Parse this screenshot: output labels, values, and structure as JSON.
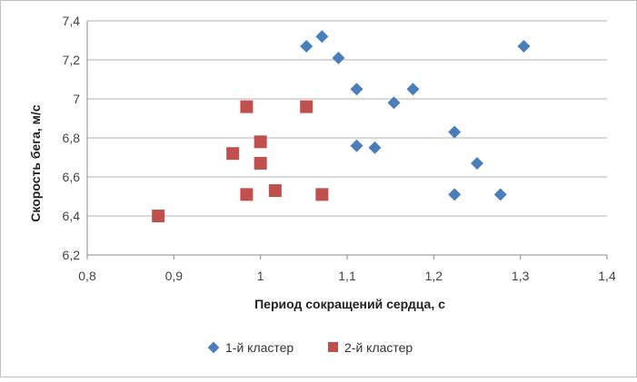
{
  "chart_data": {
    "type": "scatter",
    "title": "",
    "xlabel": "Период сокращений сердца, с",
    "ylabel": "Скорость бега, м/с",
    "xlim": [
      0.8,
      1.4
    ],
    "ylim": [
      6.2,
      7.4
    ],
    "x_ticks": [
      "0,8",
      "0,9",
      "1",
      "1,1",
      "1,2",
      "1,3",
      "1,4"
    ],
    "y_ticks": [
      "6,2",
      "6,4",
      "6,6",
      "6,8",
      "7",
      "7,2",
      "7,4"
    ],
    "grid": "horizontal",
    "legend_position": "bottom",
    "series": [
      {
        "name": "1-й кластер",
        "color": "#4a7ebb",
        "marker": "diamond",
        "points": [
          {
            "x": 1.053,
            "y": 7.27
          },
          {
            "x": 1.071,
            "y": 7.32
          },
          {
            "x": 1.09,
            "y": 7.21
          },
          {
            "x": 1.304,
            "y": 7.27
          },
          {
            "x": 1.111,
            "y": 7.05
          },
          {
            "x": 1.176,
            "y": 7.05
          },
          {
            "x": 1.154,
            "y": 6.98
          },
          {
            "x": 1.111,
            "y": 6.76
          },
          {
            "x": 1.132,
            "y": 6.75
          },
          {
            "x": 1.224,
            "y": 6.83
          },
          {
            "x": 1.25,
            "y": 6.67
          },
          {
            "x": 1.224,
            "y": 6.51
          },
          {
            "x": 1.277,
            "y": 6.51
          }
        ]
      },
      {
        "name": "2-й кластер",
        "color": "#c0504d",
        "marker": "square",
        "points": [
          {
            "x": 0.984,
            "y": 6.96
          },
          {
            "x": 1.053,
            "y": 6.96
          },
          {
            "x": 1.0,
            "y": 6.78
          },
          {
            "x": 0.968,
            "y": 6.72
          },
          {
            "x": 1.0,
            "y": 6.67
          },
          {
            "x": 0.984,
            "y": 6.51
          },
          {
            "x": 1.017,
            "y": 6.53
          },
          {
            "x": 1.071,
            "y": 6.51
          },
          {
            "x": 0.882,
            "y": 6.4
          }
        ]
      }
    ]
  }
}
